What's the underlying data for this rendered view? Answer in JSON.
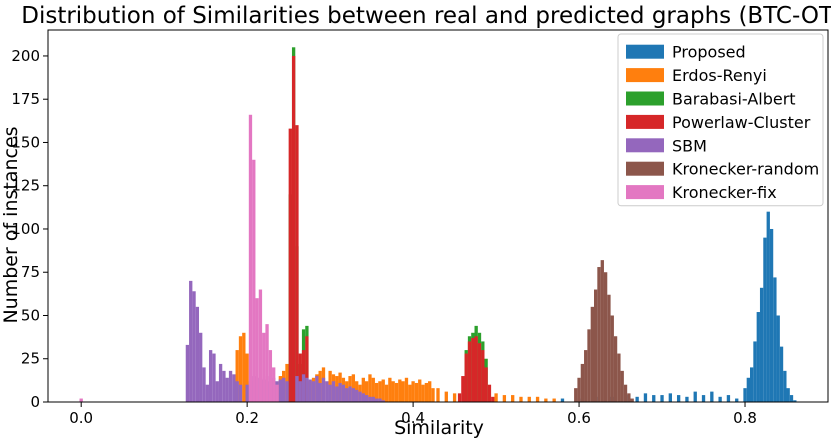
{
  "chart_data": {
    "type": "bar",
    "title": "Distribution of Similarities between real and predicted graphs (BTC-OTC)",
    "xlabel": "Similarity",
    "ylabel": "Number of instances",
    "xlim": [
      -0.04,
      0.9
    ],
    "ylim": [
      0,
      215
    ],
    "xticks": [
      0.0,
      0.2,
      0.4,
      0.6,
      0.8
    ],
    "xtick_labels": [
      "0.0",
      "0.2",
      "0.4",
      "0.6",
      "0.8"
    ],
    "yticks": [
      0,
      25,
      50,
      75,
      100,
      125,
      150,
      175,
      200
    ],
    "ytick_labels": [
      "0",
      "25",
      "50",
      "75",
      "100",
      "125",
      "150",
      "175",
      "200"
    ],
    "bin_width": 0.004,
    "grid": false,
    "legend_position": "top-right",
    "series": [
      {
        "name": "Proposed",
        "color": "#1f77b4",
        "x": [
          0.58,
          0.6,
          0.62,
          0.64,
          0.66,
          0.67,
          0.68,
          0.69,
          0.7,
          0.71,
          0.72,
          0.73,
          0.74,
          0.75,
          0.76,
          0.77,
          0.78,
          0.79,
          0.8,
          0.804,
          0.808,
          0.812,
          0.816,
          0.82,
          0.824,
          0.828,
          0.832,
          0.836,
          0.84,
          0.844,
          0.848,
          0.852,
          0.856,
          0.86
        ],
        "y": [
          2,
          2,
          3,
          3,
          4,
          3,
          5,
          4,
          4,
          5,
          4,
          3,
          6,
          4,
          6,
          3,
          4,
          2,
          8,
          14,
          20,
          35,
          52,
          66,
          95,
          110,
          100,
          72,
          50,
          32,
          18,
          8,
          4,
          1
        ]
      },
      {
        "name": "Erdos-Renyi",
        "color": "#ff7f0e",
        "x": [
          0.188,
          0.192,
          0.196,
          0.2,
          0.24,
          0.244,
          0.248,
          0.252,
          0.276,
          0.28,
          0.284,
          0.288,
          0.292,
          0.3,
          0.304,
          0.308,
          0.312,
          0.316,
          0.32,
          0.324,
          0.328,
          0.332,
          0.336,
          0.34,
          0.344,
          0.348,
          0.352,
          0.356,
          0.36,
          0.364,
          0.368,
          0.372,
          0.376,
          0.38,
          0.384,
          0.388,
          0.392,
          0.396,
          0.4,
          0.404,
          0.408,
          0.412,
          0.416,
          0.42,
          0.424,
          0.43,
          0.44,
          0.45,
          0.5,
          0.51,
          0.52,
          0.53,
          0.54,
          0.55,
          0.56,
          0.57
        ],
        "y": [
          30,
          38,
          40,
          28,
          15,
          18,
          22,
          20,
          12,
          14,
          16,
          18,
          20,
          18,
          16,
          15,
          17,
          14,
          12,
          15,
          16,
          12,
          10,
          14,
          12,
          16,
          14,
          11,
          12,
          13,
          10,
          14,
          12,
          11,
          13,
          12,
          14,
          10,
          12,
          11,
          13,
          10,
          11,
          12,
          8,
          8,
          6,
          5,
          5,
          4,
          4,
          3,
          3,
          3,
          2,
          2
        ]
      },
      {
        "name": "Barabasi-Albert",
        "color": "#2ca02c",
        "x": [
          0.252,
          0.256,
          0.26,
          0.264,
          0.268,
          0.272,
          0.464,
          0.468,
          0.472,
          0.476,
          0.48,
          0.484,
          0.488
        ],
        "y": [
          120,
          205,
          90,
          22,
          42,
          44,
          30,
          38,
          40,
          44,
          40,
          35,
          25
        ]
      },
      {
        "name": "Powerlaw-Cluster",
        "color": "#d62728",
        "x": [
          0.252,
          0.256,
          0.26,
          0.264,
          0.268,
          0.272,
          0.456,
          0.46,
          0.464,
          0.468,
          0.472,
          0.476,
          0.48,
          0.484,
          0.488,
          0.492,
          0.496
        ],
        "y": [
          158,
          200,
          160,
          28,
          30,
          38,
          5,
          15,
          28,
          35,
          37,
          38,
          34,
          30,
          20,
          10,
          3
        ]
      },
      {
        "name": "SBM",
        "color": "#9467bd",
        "x": [
          0.128,
          0.132,
          0.136,
          0.14,
          0.144,
          0.148,
          0.152,
          0.156,
          0.16,
          0.164,
          0.168,
          0.172,
          0.176,
          0.18,
          0.184,
          0.188,
          0.192,
          0.2,
          0.204,
          0.208,
          0.212,
          0.216,
          0.22,
          0.224,
          0.228,
          0.232,
          0.236,
          0.24,
          0.244,
          0.248,
          0.26,
          0.264,
          0.268,
          0.272,
          0.276,
          0.28,
          0.284,
          0.288,
          0.292,
          0.296,
          0.3,
          0.304,
          0.308,
          0.312,
          0.316,
          0.32,
          0.324,
          0.328,
          0.332,
          0.336,
          0.34,
          0.344,
          0.348,
          0.352,
          0.356,
          0.36,
          0.364
        ],
        "y": [
          33,
          70,
          64,
          55,
          40,
          20,
          10,
          30,
          28,
          12,
          22,
          18,
          14,
          18,
          16,
          12,
          10,
          10,
          12,
          15,
          14,
          14,
          13,
          15,
          12,
          14,
          12,
          13,
          14,
          12,
          15,
          12,
          16,
          14,
          13,
          12,
          15,
          11,
          14,
          12,
          10,
          12,
          9,
          11,
          10,
          8,
          9,
          8,
          7,
          6,
          5,
          4,
          3,
          3,
          2,
          2,
          1
        ]
      },
      {
        "name": "Kronecker-random",
        "color": "#8c564b",
        "x": [
          0.596,
          0.6,
          0.604,
          0.608,
          0.612,
          0.616,
          0.62,
          0.624,
          0.628,
          0.632,
          0.636,
          0.64,
          0.644,
          0.648,
          0.652,
          0.656,
          0.66,
          0.664
        ],
        "y": [
          8,
          14,
          22,
          30,
          42,
          55,
          65,
          78,
          82,
          75,
          62,
          50,
          38,
          28,
          18,
          10,
          5,
          2
        ]
      },
      {
        "name": "Kronecker-fix",
        "color": "#e377c2",
        "x": [
          0.0,
          0.204,
          0.208,
          0.212,
          0.216,
          0.22,
          0.224,
          0.228,
          0.232,
          0.236
        ],
        "y": [
          2,
          166,
          140,
          60,
          65,
          40,
          45,
          30,
          20,
          10
        ]
      }
    ]
  }
}
